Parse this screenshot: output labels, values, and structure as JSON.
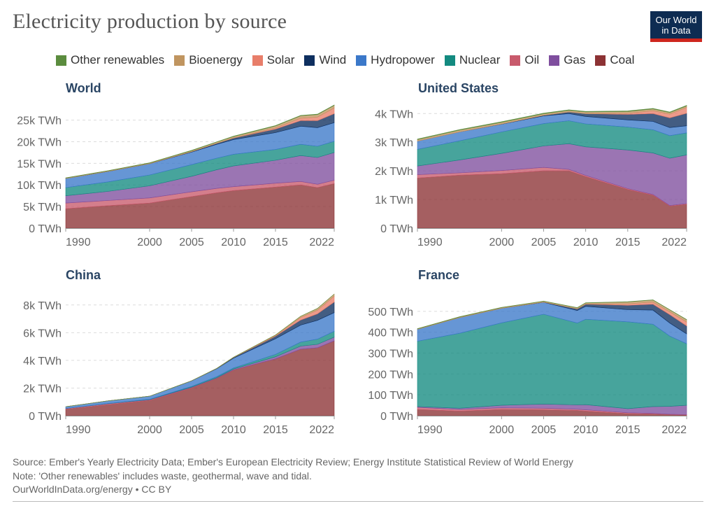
{
  "title": "Electricity production by source",
  "logo": {
    "text": "Our World\nin Data"
  },
  "legend": [
    {
      "name": "Other renewables",
      "color": "#5b8c3e"
    },
    {
      "name": "Bioenergy",
      "color": "#c09560"
    },
    {
      "name": "Solar",
      "color": "#e87e6a"
    },
    {
      "name": "Wind",
      "color": "#0e2f5f"
    },
    {
      "name": "Hydropower",
      "color": "#3b78c9"
    },
    {
      "name": "Nuclear",
      "color": "#138a80"
    },
    {
      "name": "Oil",
      "color": "#c85a6c"
    },
    {
      "name": "Gas",
      "color": "#7f4e9e"
    },
    {
      "name": "Coal",
      "color": "#8c3234"
    }
  ],
  "footer": {
    "source": "Source: Ember's Yearly Electricity Data; Ember's European Electricity Review; Energy Institute Statistical Review of World Energy",
    "note": "Note: 'Other renewables' includes waste, geothermal, wave and tidal.",
    "credit": "OurWorldInData.org/energy • CC BY"
  },
  "chart_data": [
    {
      "type": "area",
      "stacked": true,
      "title": "World",
      "x_ticks": [
        "1990",
        "2000",
        "2005",
        "2010",
        "2015",
        "2022"
      ],
      "y_ticks": [
        "0 TWh",
        "5k TWh",
        "10k TWh",
        "15k TWh",
        "20k TWh",
        "25k TWh"
      ],
      "xlim": [
        1990,
        2022
      ],
      "ylim": [
        0,
        28500
      ],
      "y_tick_values": [
        0,
        5000,
        10000,
        15000,
        20000,
        25000
      ],
      "x": [
        1990,
        1995,
        2000,
        2005,
        2008,
        2010,
        2015,
        2018,
        2020,
        2022
      ],
      "series": [
        {
          "name": "Coal",
          "values": [
            4500,
            5200,
            5800,
            7300,
            8200,
            8700,
            9500,
            10000,
            9400,
            10300
          ]
        },
        {
          "name": "Oil",
          "values": [
            1300,
            1200,
            1200,
            1100,
            1000,
            900,
            900,
            800,
            750,
            800
          ]
        },
        {
          "name": "Gas",
          "values": [
            1700,
            2100,
            2800,
            3600,
            4300,
            4800,
            5300,
            6000,
            6200,
            6400
          ]
        },
        {
          "name": "Nuclear",
          "values": [
            1900,
            2200,
            2500,
            2700,
            2700,
            2700,
            2500,
            2600,
            2600,
            2600
          ]
        },
        {
          "name": "Hydropower",
          "values": [
            2100,
            2400,
            2600,
            2900,
            3200,
            3400,
            3900,
            4200,
            4300,
            4300
          ]
        },
        {
          "name": "Wind",
          "values": [
            0,
            10,
            30,
            100,
            220,
            340,
            830,
            1270,
            1600,
            2100
          ]
        },
        {
          "name": "Solar",
          "values": [
            0,
            0,
            0,
            0,
            10,
            30,
            250,
            570,
            850,
            1300
          ]
        },
        {
          "name": "Bioenergy",
          "values": [
            100,
            130,
            150,
            230,
            280,
            330,
            470,
            550,
            580,
            600
          ]
        },
        {
          "name": "Other renewables",
          "values": [
            40,
            50,
            60,
            70,
            70,
            80,
            90,
            100,
            100,
            100
          ]
        }
      ]
    },
    {
      "type": "area",
      "stacked": true,
      "title": "United States",
      "x_ticks": [
        "1990",
        "2000",
        "2005",
        "2010",
        "2015",
        "2022"
      ],
      "y_ticks": [
        "0 TWh",
        "1k TWh",
        "2k TWh",
        "3k TWh",
        "4k TWh"
      ],
      "xlim": [
        1990,
        2022
      ],
      "ylim": [
        0,
        4300
      ],
      "y_tick_values": [
        0,
        1000,
        2000,
        3000,
        4000
      ],
      "x": [
        1990,
        1995,
        2000,
        2005,
        2008,
        2010,
        2015,
        2018,
        2020,
        2022
      ],
      "series": [
        {
          "name": "Coal",
          "values": [
            1750,
            1850,
            1900,
            2000,
            2000,
            1800,
            1350,
            1150,
            770,
            830
          ]
        },
        {
          "name": "Oil",
          "values": [
            120,
            80,
            110,
            120,
            50,
            40,
            30,
            25,
            20,
            25
          ]
        },
        {
          "name": "Gas",
          "values": [
            300,
            450,
            600,
            750,
            900,
            1000,
            1350,
            1450,
            1650,
            1700
          ]
        },
        {
          "name": "Nuclear",
          "values": [
            580,
            670,
            750,
            780,
            800,
            800,
            800,
            810,
            790,
            770
          ]
        },
        {
          "name": "Hydropower",
          "values": [
            290,
            310,
            270,
            270,
            250,
            260,
            250,
            290,
            280,
            250
          ]
        },
        {
          "name": "Wind",
          "values": [
            0,
            0,
            5,
            18,
            55,
            95,
            190,
            275,
            340,
            435
          ]
        },
        {
          "name": "Solar",
          "values": [
            0,
            0,
            0,
            0,
            2,
            3,
            40,
            100,
            130,
            205
          ]
        },
        {
          "name": "Bioenergy",
          "values": [
            50,
            60,
            60,
            55,
            55,
            58,
            64,
            60,
            55,
            50
          ]
        },
        {
          "name": "Other renewables",
          "values": [
            20,
            20,
            20,
            20,
            20,
            20,
            20,
            20,
            20,
            20
          ]
        }
      ]
    },
    {
      "type": "area",
      "stacked": true,
      "title": "China",
      "x_ticks": [
        "1990",
        "2000",
        "2005",
        "2010",
        "2015",
        "2022"
      ],
      "y_ticks": [
        "0 TWh",
        "2k TWh",
        "4k TWh",
        "6k TWh",
        "8k TWh"
      ],
      "xlim": [
        1990,
        2022
      ],
      "ylim": [
        0,
        8900
      ],
      "y_tick_values": [
        0,
        2000,
        4000,
        6000,
        8000
      ],
      "x": [
        1990,
        1995,
        2000,
        2005,
        2008,
        2010,
        2015,
        2018,
        2020,
        2022
      ],
      "series": [
        {
          "name": "Coal",
          "values": [
            470,
            800,
            1100,
            2000,
            2700,
            3300,
            4100,
            4800,
            4900,
            5400
          ]
        },
        {
          "name": "Oil",
          "values": [
            50,
            60,
            50,
            40,
            20,
            10,
            10,
            10,
            10,
            10
          ]
        },
        {
          "name": "Gas",
          "values": [
            0,
            10,
            20,
            30,
            30,
            70,
            150,
            220,
            250,
            270
          ]
        },
        {
          "name": "Nuclear",
          "values": [
            0,
            10,
            20,
            50,
            70,
            70,
            170,
            290,
            370,
            420
          ]
        },
        {
          "name": "Hydropower",
          "values": [
            130,
            190,
            220,
            400,
            580,
            710,
            1130,
            1230,
            1360,
            1350
          ]
        },
        {
          "name": "Wind",
          "values": [
            0,
            0,
            0,
            2,
            15,
            45,
            185,
            365,
            470,
            760
          ]
        },
        {
          "name": "Solar",
          "values": [
            0,
            0,
            0,
            0,
            0,
            1,
            40,
            180,
            260,
            430
          ]
        },
        {
          "name": "Bioenergy",
          "values": [
            0,
            0,
            3,
            5,
            8,
            20,
            50,
            90,
            130,
            150
          ]
        },
        {
          "name": "Other renewables",
          "values": [
            0,
            0,
            0,
            0,
            0,
            0,
            0,
            1,
            1,
            1
          ]
        }
      ]
    },
    {
      "type": "area",
      "stacked": true,
      "title": "France",
      "x_ticks": [
        "1990",
        "2000",
        "2005",
        "2010",
        "2015",
        "2022"
      ],
      "y_ticks": [
        "0 TWh",
        "100 TWh",
        "200 TWh",
        "300 TWh",
        "400 TWh",
        "500 TWh"
      ],
      "xlim": [
        1990,
        2022
      ],
      "ylim": [
        0,
        590
      ],
      "y_tick_values": [
        0,
        100,
        200,
        300,
        400,
        500
      ],
      "x": [
        1990,
        1995,
        2000,
        2005,
        2009,
        2010,
        2015,
        2018,
        2020,
        2022
      ],
      "series": [
        {
          "name": "Coal",
          "values": [
            30,
            22,
            30,
            28,
            25,
            22,
            10,
            8,
            5,
            3
          ]
        },
        {
          "name": "Oil",
          "values": [
            10,
            8,
            8,
            8,
            6,
            6,
            4,
            3,
            2,
            2
          ]
        },
        {
          "name": "Gas",
          "values": [
            4,
            6,
            12,
            20,
            21,
            25,
            20,
            33,
            38,
            45
          ]
        },
        {
          "name": "Nuclear",
          "values": [
            313,
            359,
            395,
            430,
            392,
            409,
            416,
            394,
            336,
            295
          ]
        },
        {
          "name": "Hydropower",
          "values": [
            57,
            75,
            70,
            57,
            60,
            62,
            58,
            68,
            63,
            47
          ]
        },
        {
          "name": "Wind",
          "values": [
            0,
            0,
            0,
            1,
            8,
            10,
            21,
            28,
            40,
            38
          ]
        },
        {
          "name": "Solar",
          "values": [
            0,
            0,
            0,
            0,
            0,
            1,
            7,
            10,
            13,
            19
          ]
        },
        {
          "name": "Bioenergy",
          "values": [
            2,
            3,
            3,
            4,
            5,
            5,
            9,
            10,
            10,
            11
          ]
        },
        {
          "name": "Other renewables",
          "values": [
            1,
            1,
            1,
            1,
            1,
            1,
            1,
            1,
            1,
            1
          ]
        }
      ]
    }
  ]
}
